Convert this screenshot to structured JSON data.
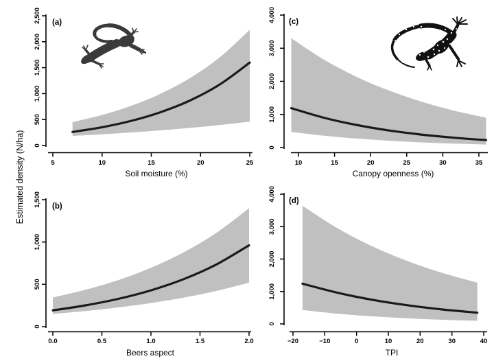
{
  "figure": {
    "shared_y_axis_label": "Estimated density (N/ha)",
    "colors": {
      "background": "#ffffff",
      "confidence_band": "#c0c0c0",
      "mean_curve": "#1a1a1a",
      "axis": "#000000",
      "smooth_salamander": "#3a3a3a",
      "spotted_salamander": "#111111"
    },
    "icons": [
      {
        "name": "smooth-salamander-silhouette",
        "panel": "a"
      },
      {
        "name": "spotted-salamander-silhouette",
        "panel": "c"
      }
    ]
  },
  "chart_data": [
    {
      "id": "a",
      "type": "line",
      "panel_label": "(a)",
      "xlabel": "Soil moisture (%)",
      "ylabel": "Estimated density (N/ha)",
      "xlim": [
        5,
        25
      ],
      "ylim": [
        0,
        2500
      ],
      "x_ticks": [
        5,
        10,
        15,
        20,
        25
      ],
      "x_tick_labels": [
        "5",
        "10",
        "15",
        "20",
        "25"
      ],
      "y_ticks": [
        0,
        500,
        1000,
        1500,
        2000,
        2500
      ],
      "y_tick_labels": [
        "0",
        "500",
        "1,000",
        "1,500",
        "2,000",
        "2,500"
      ],
      "x": [
        7,
        10,
        13,
        16,
        19,
        22,
        25
      ],
      "series": [
        {
          "name": "mean",
          "values": [
            260,
            352,
            476,
            645,
            873,
            1181,
            1598
          ]
        },
        {
          "name": "lower_ci",
          "values": [
            185,
            215,
            251,
            292,
            340,
            395,
            460
          ]
        },
        {
          "name": "upper_ci",
          "values": [
            450,
            588,
            767,
            1002,
            1308,
            1707,
            2229
          ]
        }
      ],
      "band_series": [
        "lower_ci",
        "upper_ci"
      ]
    },
    {
      "id": "b",
      "type": "line",
      "panel_label": "(b)",
      "xlabel": "Beers aspect",
      "ylabel": "Estimated density (N/ha)",
      "xlim": [
        0,
        2
      ],
      "ylim": [
        0,
        1500
      ],
      "x_ticks": [
        0,
        0.5,
        1,
        1.5,
        2
      ],
      "x_tick_labels": [
        "0.0",
        "0.5",
        "1.0",
        "1.5",
        "2.0"
      ],
      "y_ticks": [
        0,
        500,
        1000,
        1500
      ],
      "y_tick_labels": [
        "0",
        "500",
        "1,000",
        "1,500"
      ],
      "x": [
        0,
        0.333,
        0.667,
        1.0,
        1.333,
        1.667,
        2.0
      ],
      "series": [
        {
          "name": "mean",
          "values": [
            192,
            251,
            328,
            429,
            561,
            735,
            961
          ]
        },
        {
          "name": "lower_ci",
          "values": [
            150,
            184,
            227,
            279,
            343,
            422,
            519
          ]
        },
        {
          "name": "upper_ci",
          "values": [
            345,
            436,
            550,
            695,
            877,
            1108,
            1399
          ]
        }
      ],
      "band_series": [
        "lower_ci",
        "upper_ci"
      ]
    },
    {
      "id": "c",
      "type": "line",
      "panel_label": "(c)",
      "xlabel": "Canopy openness (%)",
      "ylabel": "Estimated density (N/ha)",
      "xlim": [
        10,
        35
      ],
      "ylim": [
        0,
        4000
      ],
      "x_ticks": [
        10,
        15,
        20,
        25,
        30,
        35
      ],
      "x_tick_labels": [
        "10",
        "15",
        "20",
        "25",
        "30",
        "35"
      ],
      "y_ticks": [
        0,
        1000,
        2000,
        3000,
        4000
      ],
      "y_tick_labels": [
        "0",
        "1,000",
        "2,000",
        "3,000",
        "4,000"
      ],
      "x": [
        9,
        13.5,
        18,
        22.5,
        27,
        31.5,
        36
      ],
      "series": [
        {
          "name": "mean",
          "values": [
            1190,
            901,
            683,
            517,
            392,
            297,
            225
          ]
        },
        {
          "name": "lower_ci",
          "values": [
            470,
            357,
            271,
            206,
            156,
            119,
            90
          ]
        },
        {
          "name": "upper_ci",
          "values": [
            3300,
            2658,
            2141,
            1724,
            1389,
            1118,
            901
          ]
        }
      ],
      "band_series": [
        "lower_ci",
        "upper_ci"
      ]
    },
    {
      "id": "d",
      "type": "line",
      "panel_label": "(d)",
      "xlabel": "TPI",
      "ylabel": "Estimated density (N/ha)",
      "xlim": [
        -20,
        40
      ],
      "ylim": [
        0,
        4000
      ],
      "x_ticks": [
        -20,
        -10,
        0,
        10,
        20,
        30,
        40
      ],
      "x_tick_labels": [
        "−20",
        "−10",
        "0",
        "10",
        "20",
        "30",
        "40"
      ],
      "y_ticks": [
        0,
        1000,
        2000,
        3000,
        4000
      ],
      "y_tick_labels": [
        "0",
        "1,000",
        "2,000",
        "3,000",
        "4,000"
      ],
      "x": [
        -17,
        -6,
        5,
        16,
        27,
        38
      ],
      "series": [
        {
          "name": "mean",
          "values": [
            1240,
            960,
            743,
            575,
            445,
            345
          ]
        },
        {
          "name": "lower_ci",
          "values": [
            430,
            316,
            233,
            171,
            126,
            93
          ]
        },
        {
          "name": "upper_ci",
          "values": [
            3640,
            2950,
            2391,
            1938,
            1571,
            1273
          ]
        }
      ],
      "band_series": [
        "lower_ci",
        "upper_ci"
      ]
    }
  ]
}
